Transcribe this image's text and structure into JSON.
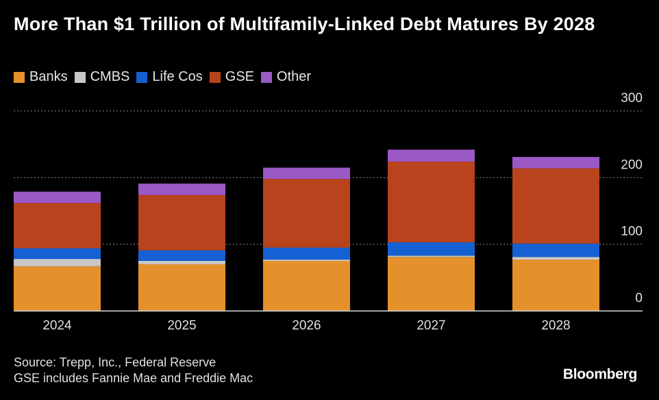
{
  "title": "More Than $1 Trillion of Multifamily-Linked Debt Matures By 2028",
  "colors": {
    "Banks": "#e4912b",
    "CMBS": "#c8c8c8",
    "Life Cos": "#1560d2",
    "GSE": "#b9431c",
    "Other": "#9b59c6"
  },
  "chart_data": {
    "type": "bar",
    "stacked": true,
    "title": "More Than $1 Trillion of Multifamily-Linked Debt Matures By 2028",
    "xlabel": "",
    "ylabel": "",
    "ylim": [
      0,
      300
    ],
    "yticks": [
      0,
      100,
      200,
      300
    ],
    "grid": true,
    "legend_position": "top-left",
    "categories": [
      "2024",
      "2025",
      "2026",
      "2027",
      "2028"
    ],
    "series": [
      {
        "name": "Banks",
        "values": [
          67,
          70,
          75,
          81,
          77
        ]
      },
      {
        "name": "CMBS",
        "values": [
          11,
          5,
          2,
          2,
          4
        ]
      },
      {
        "name": "Life Cos",
        "values": [
          16,
          16,
          18,
          20,
          20
        ]
      },
      {
        "name": "GSE",
        "values": [
          68,
          83,
          103,
          121,
          113
        ]
      },
      {
        "name": "Other",
        "values": [
          17,
          17,
          17,
          18,
          17
        ]
      }
    ]
  },
  "footer": {
    "source": "Source: Trepp, Inc., Federal Reserve",
    "note": "GSE includes Fannie Mae and Freddie Mac"
  },
  "brand": "Bloomberg"
}
